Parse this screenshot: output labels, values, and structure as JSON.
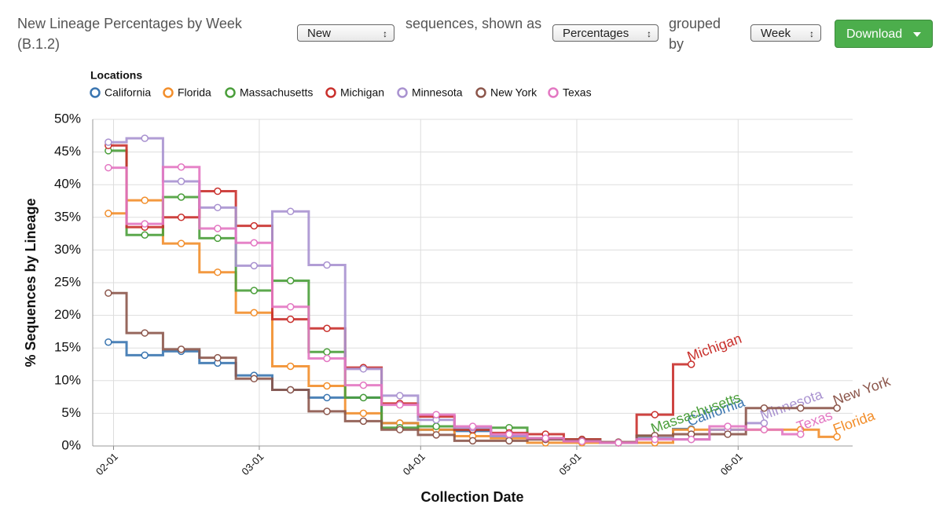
{
  "header": {
    "title": "New Lineage Percentages by Week (B.1.2)",
    "select_kind": "New",
    "text_1": "sequences, shown as",
    "select_mode": "Percentages",
    "text_2": "grouped by",
    "select_group": "Week",
    "download": "Download"
  },
  "chart_data": {
    "type": "line",
    "step": "middle",
    "legend_title": "Locations",
    "xlabel": "Collection Date",
    "ylabel": "% Sequences by Lineage",
    "x": [
      "01-31",
      "02-07",
      "02-14",
      "02-21",
      "02-28",
      "03-07",
      "03-14",
      "03-21",
      "03-28",
      "04-04",
      "04-11",
      "04-18",
      "04-25",
      "05-02",
      "05-09",
      "05-16",
      "05-23",
      "05-30",
      "06-06",
      "06-13",
      "06-20"
    ],
    "xlim": [
      "01-28",
      "06-23"
    ],
    "xticks": [
      "02-01",
      "03-01",
      "04-01",
      "05-01",
      "06-01"
    ],
    "ylim": [
      0,
      50
    ],
    "yticks": [
      {
        "value": 0,
        "label": "0%"
      },
      {
        "value": 5,
        "label": "5%"
      },
      {
        "value": 10,
        "label": "10%"
      },
      {
        "value": 15,
        "label": "15%"
      },
      {
        "value": 20,
        "label": "20%"
      },
      {
        "value": 25,
        "label": "25%"
      },
      {
        "value": 30,
        "label": "30%"
      },
      {
        "value": 35,
        "label": "35%"
      },
      {
        "value": 40,
        "label": "40%"
      },
      {
        "value": 45,
        "label": "45%"
      },
      {
        "value": 50,
        "label": "50%"
      }
    ],
    "grid": true,
    "series": [
      {
        "name": "California",
        "color": "#3a75b0",
        "values": [
          15.9,
          13.9,
          14.5,
          12.7,
          10.8,
          8.6,
          7.4,
          7.4,
          3.5,
          2.5,
          2.3,
          1.5,
          1.2,
          1.0,
          0.5,
          1.2,
          2.6,
          null,
          null,
          null,
          null
        ]
      },
      {
        "name": "Florida",
        "color": "#f28e2b",
        "values": [
          35.6,
          37.6,
          31.0,
          26.6,
          20.4,
          12.2,
          9.2,
          5.0,
          3.5,
          2.5,
          1.5,
          1.2,
          0.5,
          0.5,
          0.5,
          0.5,
          2.5,
          2.5,
          2.5,
          2.5,
          1.4
        ]
      },
      {
        "name": "Massachusetts",
        "color": "#4a9e3a",
        "values": [
          45.2,
          32.3,
          38.1,
          31.8,
          23.8,
          25.3,
          14.4,
          7.4,
          2.8,
          3.0,
          2.5,
          2.8,
          1.2,
          1.0,
          0.5,
          1.5,
          null,
          null,
          null,
          null,
          null
        ]
      },
      {
        "name": "Michigan",
        "color": "#c9302c",
        "values": [
          46.0,
          33.5,
          35.0,
          39.0,
          33.7,
          19.4,
          18.0,
          12.0,
          6.5,
          4.5,
          2.5,
          2.0,
          1.8,
          1.0,
          0.5,
          4.8,
          12.5,
          null,
          null,
          null,
          null
        ]
      },
      {
        "name": "Minnesota",
        "color": "#a992d0",
        "values": [
          46.5,
          47.1,
          40.5,
          36.5,
          27.6,
          35.9,
          27.7,
          11.8,
          7.7,
          4.0,
          2.8,
          1.5,
          1.0,
          0.8,
          0.5,
          1.2,
          1.0,
          2.5,
          3.5,
          null,
          null
        ]
      },
      {
        "name": "New York",
        "color": "#8c564b",
        "values": [
          23.4,
          17.3,
          14.8,
          13.5,
          10.3,
          8.6,
          5.3,
          3.8,
          2.5,
          1.7,
          0.8,
          0.8,
          1.0,
          0.8,
          0.6,
          1.6,
          1.8,
          1.8,
          5.8,
          5.8,
          5.8
        ]
      },
      {
        "name": "Texas",
        "color": "#e377c2",
        "values": [
          42.6,
          34.0,
          42.7,
          33.3,
          31.1,
          21.3,
          13.4,
          9.3,
          6.3,
          4.8,
          3.0,
          1.8,
          1.2,
          0.7,
          0.5,
          1.0,
          1.0,
          3.0,
          2.5,
          1.8,
          null
        ]
      }
    ]
  }
}
